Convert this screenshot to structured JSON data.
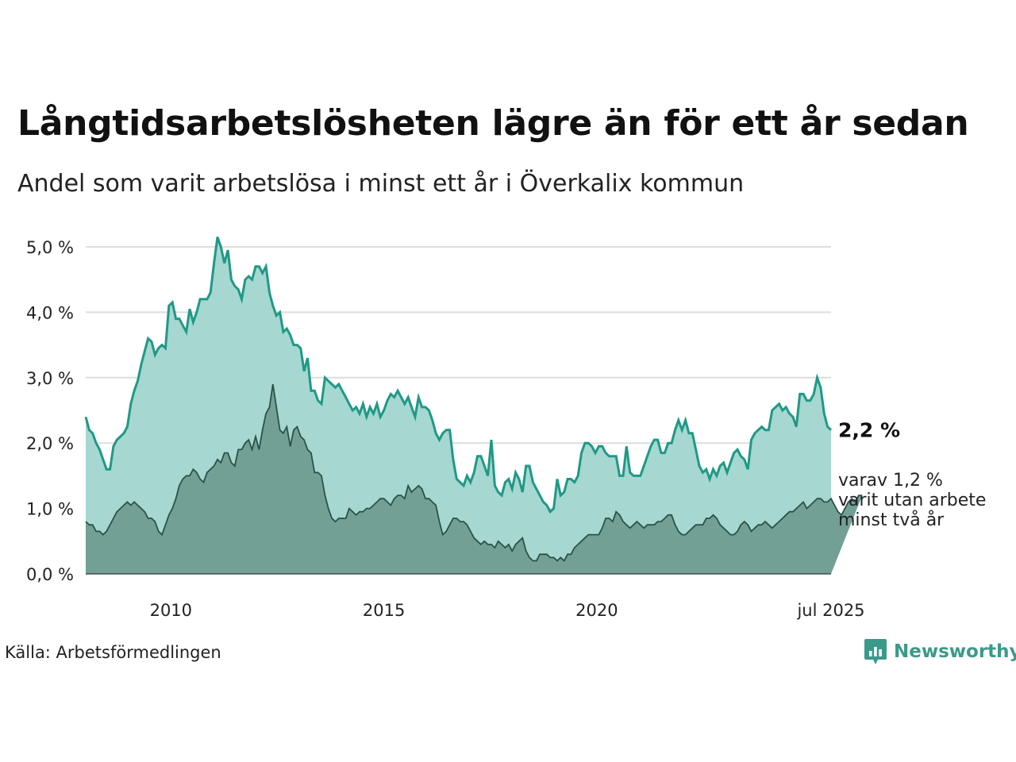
{
  "header": {
    "title": "Långtidsarbetslösheten lägre än för ett år sedan",
    "subtitle": "Andel som varit arbetslösa i minst ett år i Överkalix kommun"
  },
  "footer": {
    "source": "Källa: Arbetsförmedlingen",
    "brand": "Newsworthy"
  },
  "colors": {
    "total_line": "#1f9986",
    "total_fill": "#a6d7d1",
    "longterm_line": "#2c5248",
    "longterm_fill": "#72a095",
    "grid": "#dddddd",
    "brand": "#3a9a8a"
  },
  "chart_data": {
    "type": "area",
    "x_start": "2008-01",
    "x_end": "2025-07",
    "x_frequency": "monthly",
    "x_ticks": [
      "2010",
      "2015",
      "2020",
      "jul 2025"
    ],
    "y_ticks": [
      "0,0 %",
      "1,0 %",
      "2,0 %",
      "3,0 %",
      "4,0 %",
      "5,0 %"
    ],
    "ylim": [
      0,
      5
    ],
    "grid": true,
    "annotations": {
      "total_label": "2,2 %",
      "longterm_label_lines": [
        "varav 1,2 %",
        "varit utan arbete",
        "minst två år"
      ]
    },
    "series": [
      {
        "key": "total",
        "values": [
          2.4,
          2.2,
          2.15,
          2.0,
          1.9,
          1.75,
          1.6,
          1.6,
          1.95,
          2.05,
          2.1,
          2.15,
          2.25,
          2.6,
          2.8,
          2.95,
          3.2,
          3.4,
          3.6,
          3.55,
          3.35,
          3.45,
          3.5,
          3.45,
          4.1,
          4.15,
          3.9,
          3.9,
          3.8,
          3.7,
          4.05,
          3.85,
          4.0,
          4.2,
          4.2,
          4.2,
          4.3,
          4.75,
          5.15,
          5.0,
          4.75,
          4.95,
          4.5,
          4.4,
          4.35,
          4.2,
          4.5,
          4.55,
          4.5,
          4.7,
          4.7,
          4.6,
          4.7,
          4.3,
          4.1,
          3.95,
          4.0,
          3.7,
          3.75,
          3.65,
          3.5,
          3.5,
          3.45,
          3.1,
          3.3,
          2.8,
          2.8,
          2.65,
          2.6,
          3.0,
          2.95,
          2.9,
          2.85,
          2.9,
          2.8,
          2.7,
          2.6,
          2.5,
          2.55,
          2.45,
          2.6,
          2.4,
          2.55,
          2.45,
          2.6,
          2.4,
          2.5,
          2.65,
          2.75,
          2.7,
          2.8,
          2.7,
          2.6,
          2.7,
          2.55,
          2.4,
          2.7,
          2.55,
          2.55,
          2.5,
          2.35,
          2.15,
          2.05,
          2.15,
          2.2,
          2.2,
          1.75,
          1.45,
          1.4,
          1.35,
          1.5,
          1.4,
          1.55,
          1.8,
          1.8,
          1.65,
          1.5,
          2.05,
          1.35,
          1.25,
          1.2,
          1.4,
          1.45,
          1.3,
          1.55,
          1.45,
          1.25,
          1.65,
          1.65,
          1.4,
          1.3,
          1.2,
          1.1,
          1.05,
          0.95,
          1.0,
          1.45,
          1.2,
          1.25,
          1.45,
          1.45,
          1.4,
          1.5,
          1.85,
          2.0,
          2.0,
          1.95,
          1.85,
          1.95,
          1.95,
          1.85,
          1.8,
          1.8,
          1.8,
          1.5,
          1.5,
          1.95,
          1.55,
          1.5,
          1.5,
          1.5,
          1.65,
          1.8,
          1.95,
          2.05,
          2.05,
          1.85,
          1.85,
          2.0,
          2.0,
          2.2,
          2.35,
          2.2,
          2.35,
          2.15,
          2.15,
          1.9,
          1.65,
          1.55,
          1.6,
          1.45,
          1.6,
          1.5,
          1.65,
          1.7,
          1.55,
          1.7,
          1.85,
          1.9,
          1.8,
          1.75,
          1.6,
          2.05,
          2.15,
          2.2,
          2.25,
          2.2,
          2.2,
          2.5,
          2.55,
          2.6,
          2.5,
          2.55,
          2.45,
          2.4,
          2.25,
          2.75,
          2.75,
          2.65,
          2.65,
          2.75,
          3.0,
          2.85,
          2.45,
          2.25,
          2.2
        ]
      },
      {
        "key": "longterm",
        "values": [
          0.8,
          0.75,
          0.75,
          0.65,
          0.65,
          0.6,
          0.65,
          0.75,
          0.85,
          0.95,
          1.0,
          1.05,
          1.1,
          1.05,
          1.1,
          1.05,
          1.0,
          0.95,
          0.85,
          0.85,
          0.8,
          0.65,
          0.6,
          0.75,
          0.9,
          1.0,
          1.15,
          1.35,
          1.45,
          1.5,
          1.5,
          1.6,
          1.55,
          1.45,
          1.4,
          1.55,
          1.6,
          1.65,
          1.75,
          1.7,
          1.85,
          1.85,
          1.7,
          1.65,
          1.9,
          1.9,
          2.0,
          2.05,
          1.9,
          2.1,
          1.9,
          2.2,
          2.45,
          2.55,
          2.9,
          2.55,
          2.2,
          2.15,
          2.25,
          1.95,
          2.2,
          2.25,
          2.1,
          2.05,
          1.9,
          1.85,
          1.55,
          1.55,
          1.5,
          1.2,
          1.0,
          0.85,
          0.8,
          0.85,
          0.85,
          0.85,
          1.0,
          0.95,
          0.9,
          0.95,
          0.95,
          1.0,
          1.0,
          1.05,
          1.1,
          1.15,
          1.15,
          1.1,
          1.05,
          1.15,
          1.2,
          1.2,
          1.15,
          1.35,
          1.25,
          1.3,
          1.35,
          1.3,
          1.15,
          1.15,
          1.1,
          1.05,
          0.8,
          0.6,
          0.65,
          0.75,
          0.85,
          0.85,
          0.8,
          0.8,
          0.75,
          0.65,
          0.55,
          0.5,
          0.45,
          0.5,
          0.45,
          0.45,
          0.4,
          0.5,
          0.45,
          0.4,
          0.45,
          0.35,
          0.45,
          0.5,
          0.55,
          0.35,
          0.25,
          0.2,
          0.2,
          0.3,
          0.3,
          0.3,
          0.25,
          0.25,
          0.2,
          0.25,
          0.2,
          0.3,
          0.3,
          0.4,
          0.45,
          0.5,
          0.55,
          0.6,
          0.6,
          0.6,
          0.6,
          0.7,
          0.85,
          0.85,
          0.8,
          0.95,
          0.9,
          0.8,
          0.75,
          0.7,
          0.75,
          0.8,
          0.75,
          0.7,
          0.75,
          0.75,
          0.75,
          0.8,
          0.8,
          0.85,
          0.9,
          0.9,
          0.75,
          0.65,
          0.6,
          0.6,
          0.65,
          0.7,
          0.75,
          0.75,
          0.75,
          0.85,
          0.85,
          0.9,
          0.85,
          0.75,
          0.7,
          0.65,
          0.6,
          0.6,
          0.65,
          0.75,
          0.8,
          0.75,
          0.65,
          0.7,
          0.75,
          0.75,
          0.8,
          0.75,
          0.7,
          0.75,
          0.8,
          0.85,
          0.9,
          0.95,
          0.95,
          1.0,
          1.05,
          1.1,
          1.0,
          1.05,
          1.1,
          1.15,
          1.15,
          1.1,
          1.1,
          1.15,
          1.05,
          0.95,
          0.9,
          1.0,
          1.1,
          1.15,
          1.1,
          1.2,
          1.2
        ]
      }
    ]
  }
}
